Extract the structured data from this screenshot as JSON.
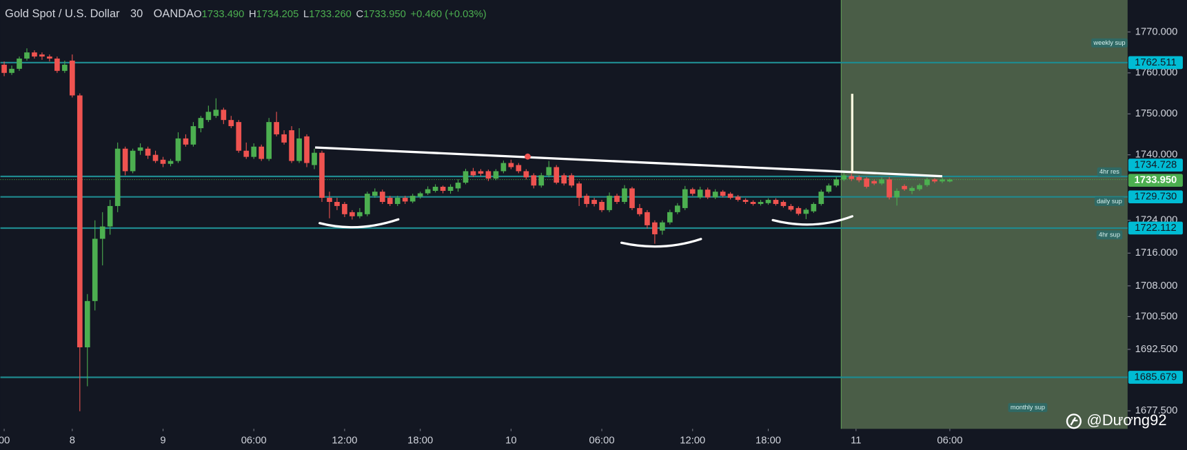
{
  "header": {
    "symbol": "Gold Spot / U.S. Dollar",
    "interval": "30",
    "exchange": "OANDA",
    "legend": [
      {
        "key": "O",
        "value": "1733.490"
      },
      {
        "key": "H",
        "value": "1734.205"
      },
      {
        "key": "L",
        "value": "1733.260"
      },
      {
        "key": "C",
        "value": "1733.950"
      }
    ],
    "change": "+0.460 (+0.03%)"
  },
  "watermark": "@Dương92",
  "chart_data": {
    "type": "candlestick",
    "up_color": "#4caf50",
    "down_color": "#ef5350",
    "xlim": [
      -0.5,
      148.5
    ],
    "ylim": [
      1673.1,
      1777.8
    ],
    "xticks": [
      {
        "value": 0,
        "label": "00"
      },
      {
        "value": 9,
        "label": "8"
      },
      {
        "value": 21,
        "label": "9"
      },
      {
        "value": 33,
        "label": "06:00"
      },
      {
        "value": 45,
        "label": "12:00"
      },
      {
        "value": 55,
        "label": "18:00"
      },
      {
        "value": 67,
        "label": "10"
      },
      {
        "value": 79,
        "label": "06:00"
      },
      {
        "value": 91,
        "label": "12:00"
      },
      {
        "value": 101,
        "label": "18:00"
      },
      {
        "value": 112.6,
        "label": "11"
      },
      {
        "value": 125,
        "label": "06:00"
      }
    ],
    "yticks": [
      {
        "value": 1770,
        "label": "1770.000"
      },
      {
        "value": 1760,
        "label": "1760.000"
      },
      {
        "value": 1750,
        "label": "1750.000"
      },
      {
        "value": 1740,
        "label": "1740.000"
      },
      {
        "value": 1724,
        "label": "1724.000"
      },
      {
        "value": 1716,
        "label": "1716.000"
      },
      {
        "value": 1708,
        "label": "1708.000"
      },
      {
        "value": 1700.5,
        "label": "1700.500"
      },
      {
        "value": 1692.5,
        "label": "1692.500"
      },
      {
        "value": 1677.5,
        "label": "1677.500"
      }
    ],
    "levels": [
      {
        "value": 1762.511,
        "label": "1762.511",
        "note": "weekly sup"
      },
      {
        "value": 1734.728,
        "label": "1734.728",
        "note": "4hr res"
      },
      {
        "value": 1729.73,
        "label": "1729.730",
        "note": "daily sup"
      },
      {
        "value": 1722.112,
        "label": "1722.112",
        "note": "4hr sup"
      },
      {
        "value": 1685.679,
        "label": "1685.679",
        "note": "monthly sup"
      }
    ],
    "level_color": "#1f8a8f",
    "last_price": {
      "value": 1733.95,
      "label": "1733.950"
    },
    "open": [
      1762,
      1760,
      1761,
      1763.5,
      1765,
      1764.5,
      1764,
      1763.5,
      1760.5,
      1763,
      1754.5,
      1693,
      1704.3,
      1719.5,
      1722.5,
      1727.5,
      1741.5,
      1736,
      1741,
      1741.5,
      1740,
      1738.8,
      1737.8,
      1738.5,
      1744,
      1742.5,
      1746.5,
      1748.5,
      1749.5,
      1751,
      1748.5,
      1748,
      1741,
      1739.5,
      1742,
      1739,
      1748,
      1745,
      1746,
      1738.5,
      1744.5,
      1737.5,
      1740.5,
      1729.5,
      1728.5,
      1728,
      1726,
      1725,
      1725.5,
      1730,
      1731,
      1729.5,
      1728,
      1729.5,
      1728.6,
      1729.8,
      1730.6,
      1731.2,
      1732.2,
      1731.2,
      1731.8,
      1733.2,
      1736,
      1736,
      1736,
      1734.2,
      1736,
      1738,
      1737.5,
      1736,
      1735,
      1732.5,
      1735,
      1737,
      1735,
      1735,
      1733,
      1730,
      1729,
      1728.5,
      1726.5,
      1730,
      1728.5,
      1731.8,
      1727,
      1726,
      1723.5,
      1721.5,
      1723.5,
      1726,
      1727,
      1731.6,
      1729.6,
      1731.5,
      1729.6,
      1731,
      1730.5,
      1729.8,
      1729,
      1728.5,
      1728,
      1728.2,
      1729,
      1728.5,
      1727.5,
      1727,
      1725.6,
      1726.2,
      1728,
      1731,
      1732.5,
      1734,
      1734.8,
      1734.6,
      1734.2,
      1733.6,
      1733,
      1734,
      1729.6,
      1732.4,
      1731.2,
      1731.6,
      1732.6,
      1734,
      1733.5,
      1733.49
    ],
    "high": [
      1762.8,
      1761.8,
      1764,
      1766,
      1765.5,
      1765,
      1764.5,
      1764,
      1763,
      1764.5,
      1755,
      1706,
      1724,
      1726,
      1729,
      1743,
      1742,
      1741.5,
      1742.8,
      1742,
      1741,
      1739.5,
      1739,
      1745.5,
      1745,
      1748,
      1749.5,
      1752,
      1753.8,
      1751.5,
      1749.5,
      1748.5,
      1743,
      1742.8,
      1742.5,
      1749,
      1750.5,
      1746,
      1747,
      1746.5,
      1745,
      1741.5,
      1741,
      1731,
      1729.5,
      1728.5,
      1726.5,
      1727,
      1731,
      1731.8,
      1731.5,
      1730,
      1730,
      1730,
      1730.5,
      1731,
      1732.3,
      1732.8,
      1732.5,
      1732.8,
      1734,
      1736.6,
      1736.8,
      1736.5,
      1736.4,
      1736.5,
      1738.6,
      1738.8,
      1738,
      1736.5,
      1735.5,
      1735.6,
      1738.5,
      1737.5,
      1735.5,
      1735.5,
      1733.5,
      1730.5,
      1729.5,
      1729,
      1730.8,
      1730.5,
      1732.6,
      1732.2,
      1728,
      1726.5,
      1724,
      1724,
      1726.6,
      1728.2,
      1732.4,
      1732,
      1732.2,
      1732,
      1731.6,
      1731.4,
      1730.9,
      1730.2,
      1729.4,
      1728.9,
      1729,
      1729.4,
      1729.4,
      1728.9,
      1728,
      1727.4,
      1727,
      1728.4,
      1731.5,
      1733,
      1734.6,
      1735.8,
      1735.4,
      1735,
      1734.6,
      1734,
      1734.5,
      1734.6,
      1731.8,
      1732.8,
      1732.3,
      1733,
      1734.4,
      1734.3,
      1734.4,
      1734.205
    ],
    "low": [
      1759.2,
      1759.5,
      1760.5,
      1763,
      1763.5,
      1763.2,
      1762.8,
      1760,
      1760,
      1754,
      1677.4,
      1683.5,
      1702,
      1713,
      1720.5,
      1726,
      1735,
      1735.5,
      1740,
      1739,
      1738,
      1737,
      1737.2,
      1738,
      1742,
      1742,
      1745.5,
      1748,
      1749,
      1747.5,
      1746.5,
      1740.5,
      1739,
      1739,
      1738.5,
      1738.5,
      1744.5,
      1742.5,
      1738,
      1738,
      1737,
      1736.5,
      1728.5,
      1724.5,
      1726.5,
      1724.8,
      1724.2,
      1724.5,
      1725,
      1729.5,
      1728,
      1727.5,
      1727.5,
      1728,
      1728.2,
      1729.3,
      1730.2,
      1730.8,
      1730.6,
      1730.5,
      1731,
      1732.8,
      1734.6,
      1734.8,
      1733.6,
      1733.8,
      1735.5,
      1736.5,
      1735.5,
      1734,
      1731.8,
      1732,
      1734.5,
      1732.8,
      1732.5,
      1732,
      1727.5,
      1727.2,
      1727.4,
      1726,
      1726,
      1728,
      1728,
      1726.5,
      1725,
      1722,
      1718.3,
      1720.5,
      1723,
      1725.5,
      1726.5,
      1730,
      1729.2,
      1729.2,
      1729.2,
      1729.6,
      1729.1,
      1728.6,
      1728,
      1727.6,
      1727.6,
      1727.8,
      1727.6,
      1727.1,
      1726.2,
      1725.2,
      1724.3,
      1725.8,
      1727.6,
      1730.6,
      1732.1,
      1733.6,
      1733.6,
      1733.3,
      1731.8,
      1732.6,
      1732.6,
      1729.1,
      1727.6,
      1731.2,
      1730.4,
      1731.2,
      1732.2,
      1733.1,
      1733.1,
      1733.26
    ],
    "close": [
      1760,
      1761,
      1763.5,
      1765,
      1764,
      1764,
      1763.5,
      1760.5,
      1762,
      1754.5,
      1693,
      1704.3,
      1719.5,
      1722.5,
      1727.5,
      1741.5,
      1736,
      1741,
      1741.8,
      1739.8,
      1738.5,
      1737.8,
      1738.5,
      1744,
      1742.5,
      1747,
      1749,
      1750.5,
      1751,
      1748.5,
      1747,
      1741,
      1739.5,
      1742,
      1739,
      1748,
      1745,
      1743,
      1738.5,
      1744,
      1738,
      1740.5,
      1729.5,
      1728.5,
      1727.5,
      1725.5,
      1725,
      1726,
      1730.5,
      1731,
      1728.5,
      1728,
      1729.5,
      1728.6,
      1730,
      1730.6,
      1731.6,
      1732.2,
      1731.2,
      1732.2,
      1733.2,
      1736,
      1735,
      1735.4,
      1734.2,
      1736,
      1738,
      1737,
      1736,
      1734.5,
      1732.5,
      1735,
      1737,
      1733.2,
      1733,
      1732.5,
      1729.5,
      1728,
      1728,
      1726.5,
      1730,
      1728.5,
      1731.8,
      1727,
      1725.5,
      1722.8,
      1720.6,
      1723.5,
      1726,
      1727.6,
      1731.6,
      1730.5,
      1731.5,
      1729.6,
      1731,
      1730,
      1729.5,
      1729,
      1728.5,
      1728,
      1728.5,
      1729,
      1728,
      1727.5,
      1726.6,
      1725.6,
      1726.6,
      1728,
      1731,
      1732.5,
      1734,
      1735,
      1734.1,
      1733.8,
      1732.2,
      1733,
      1734,
      1729.6,
      1731.2,
      1731.6,
      1731.9,
      1732.6,
      1734,
      1733.5,
      1734,
      1733.95
    ]
  }
}
